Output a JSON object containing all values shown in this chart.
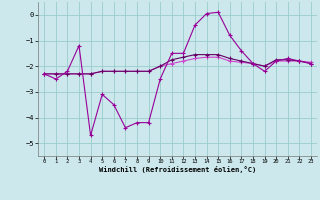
{
  "xlabel": "Windchill (Refroidissement éolien,°C)",
  "bg_color": "#cce8ec",
  "grid_color": "#99cccc",
  "color1": "#990099",
  "color2": "#cc44cc",
  "color3": "#660066",
  "hours": [
    0,
    1,
    2,
    3,
    4,
    5,
    6,
    7,
    8,
    9,
    10,
    11,
    12,
    13,
    14,
    15,
    16,
    17,
    18,
    19,
    20,
    21,
    22,
    23
  ],
  "series1": [
    -2.3,
    -2.5,
    -2.2,
    -1.2,
    -4.7,
    -3.1,
    -3.5,
    -4.4,
    -4.2,
    -4.2,
    -2.5,
    -1.5,
    -1.5,
    -0.4,
    0.05,
    0.1,
    -0.8,
    -1.4,
    -1.9,
    -2.2,
    -1.8,
    -1.7,
    -1.8,
    -1.9
  ],
  "series2": [
    -2.3,
    -2.3,
    -2.3,
    -2.3,
    -2.3,
    -2.2,
    -2.2,
    -2.2,
    -2.2,
    -2.2,
    -2.0,
    -1.9,
    -1.8,
    -1.7,
    -1.65,
    -1.65,
    -1.8,
    -1.85,
    -1.9,
    -2.0,
    -1.8,
    -1.8,
    -1.8,
    -1.85
  ],
  "series3": [
    -2.3,
    -2.3,
    -2.3,
    -2.3,
    -2.3,
    -2.2,
    -2.2,
    -2.2,
    -2.2,
    -2.2,
    -2.0,
    -1.75,
    -1.65,
    -1.55,
    -1.55,
    -1.55,
    -1.7,
    -1.8,
    -1.9,
    -2.0,
    -1.75,
    -1.75,
    -1.8,
    -1.9
  ],
  "ylim": [
    -5.5,
    0.5
  ],
  "xlim": [
    -0.5,
    23.5
  ],
  "yticks": [
    0,
    -1,
    -2,
    -3,
    -4,
    -5
  ],
  "xticks": [
    0,
    1,
    2,
    3,
    4,
    5,
    6,
    7,
    8,
    9,
    10,
    11,
    12,
    13,
    14,
    15,
    16,
    17,
    18,
    19,
    20,
    21,
    22,
    23
  ]
}
